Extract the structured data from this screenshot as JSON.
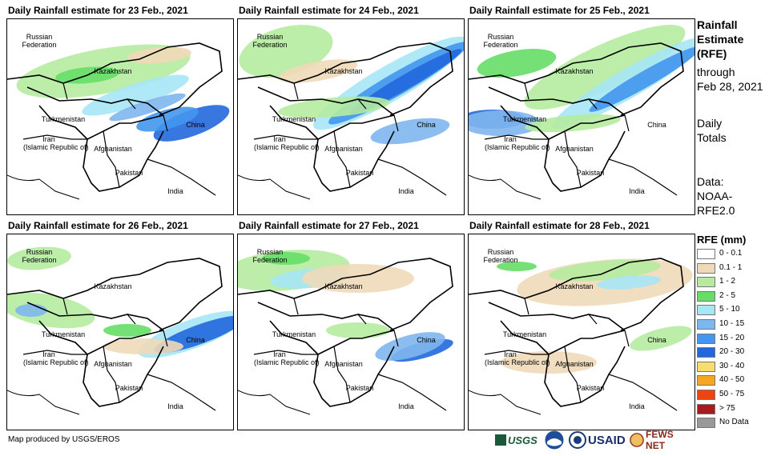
{
  "panels": [
    {
      "title": "Daily Rainfall estimate for 23 Feb., 2021"
    },
    {
      "title": "Daily Rainfall estimate for 24 Feb., 2021"
    },
    {
      "title": "Daily Rainfall estimate for 25 Feb., 2021"
    },
    {
      "title": "Daily Rainfall estimate for 26 Feb., 2021"
    },
    {
      "title": "Daily Rainfall estimate for 27 Feb., 2021"
    },
    {
      "title": "Daily Rainfall estimate for 28 Feb., 2021"
    }
  ],
  "map_labels": {
    "russia": "Russian\nFederation",
    "kazakhstan": "Kazakhstan",
    "turkmenistan": "Turkmenistan",
    "iran": "Iran\n(Islamic Republic of)",
    "afghanistan": "Afghanistan",
    "pakistan": "Pakistan",
    "india": "India",
    "china": "China"
  },
  "side": {
    "title1": "Rainfall",
    "title2": "Estimate",
    "title3": "(RFE)",
    "through1": "through",
    "through2": "Feb 28, 2021",
    "daily1": "Daily",
    "daily2": "Totals",
    "data1": "Data:",
    "data2": "NOAA-",
    "data3": "RFE2.0"
  },
  "legend": {
    "title": "RFE (mm)",
    "items": [
      {
        "label": "0 - 0.1",
        "color": "#ffffff"
      },
      {
        "label": "0.1 - 1",
        "color": "#efd9b8"
      },
      {
        "label": "1 - 2",
        "color": "#b5eba0"
      },
      {
        "label": "2 - 5",
        "color": "#66dd66"
      },
      {
        "label": "5 - 10",
        "color": "#a6e6f5"
      },
      {
        "label": "10 - 15",
        "color": "#7eb6ee"
      },
      {
        "label": "15 - 20",
        "color": "#4496ee"
      },
      {
        "label": "20 - 30",
        "color": "#2268dd"
      },
      {
        "label": "30 - 40",
        "color": "#f7dd70"
      },
      {
        "label": "40 - 50",
        "color": "#f5a623"
      },
      {
        "label": "50 - 75",
        "color": "#ee4411"
      },
      {
        "label": "> 75",
        "color": "#aa1a1a"
      },
      {
        "label": "No Data",
        "color": "#999999"
      }
    ]
  },
  "credit": "Map produced by USGS/EROS",
  "logos": {
    "usgs": "USGS",
    "usaid": "USAID",
    "fews": "FEWS NET"
  }
}
